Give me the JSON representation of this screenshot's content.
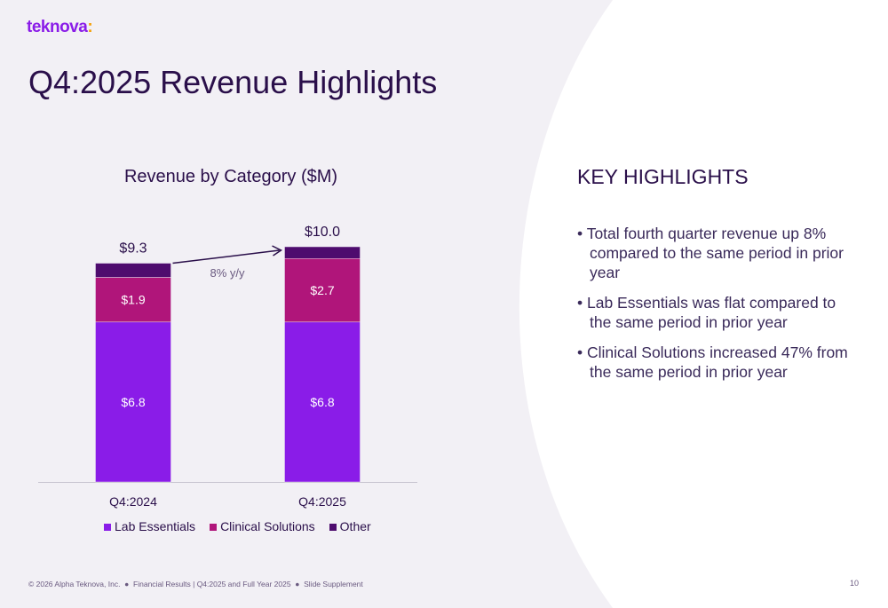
{
  "logo": {
    "text": "teknova",
    "accent": ":"
  },
  "title": "Q4:2025 Revenue Highlights",
  "highlights": {
    "heading": "KEY HIGHLIGHTS",
    "items": [
      "Total fourth quarter revenue up 8% compared to the same period in prior year",
      "Lab Essentials was flat compared to the same period in prior year",
      "Clinical Solutions increased 47% from the same period in prior year"
    ]
  },
  "footer": {
    "text": "© 2026 Alpha Teknova, Inc.  ●  Financial Results | Q4:2025 and Full Year 2025  ●  Slide Supplement",
    "page": "10"
  },
  "chart_data": {
    "type": "bar",
    "stacked": true,
    "title": "Revenue by Category ($M)",
    "categories": [
      "Q4:2024",
      "Q4:2025"
    ],
    "series": [
      {
        "name": "Lab Essentials",
        "values": [
          6.8,
          6.8
        ],
        "labels": [
          "$6.8",
          "$6.8"
        ],
        "color": "#8a1ce8"
      },
      {
        "name": "Clinical Solutions",
        "values": [
          1.9,
          2.7
        ],
        "labels": [
          "$1.9",
          "$2.7"
        ],
        "color": "#b0157a"
      },
      {
        "name": "Other",
        "values": [
          0.6,
          0.5
        ],
        "labels": [
          "",
          ""
        ],
        "color": "#4e0c6e"
      }
    ],
    "totals": [
      "$9.3",
      "$10.0"
    ],
    "annotation": "8% y/y",
    "legend": "bottom",
    "grid": false
  }
}
